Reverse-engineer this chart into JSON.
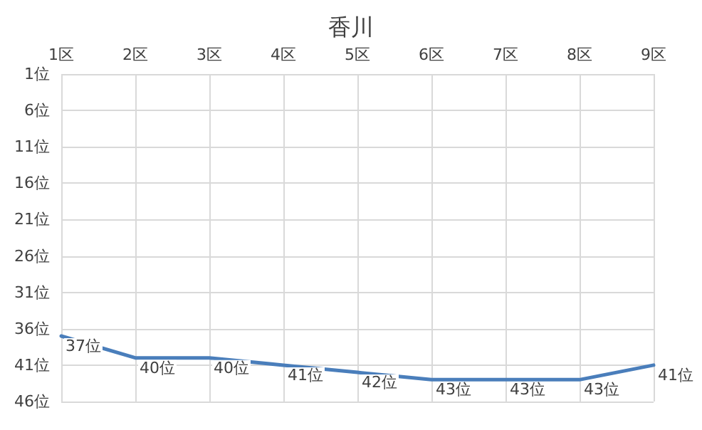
{
  "chart_data": {
    "type": "line",
    "title": "香川",
    "categories": [
      "1区",
      "2区",
      "3区",
      "4区",
      "5区",
      "6区",
      "7区",
      "8区",
      "9区"
    ],
    "series": [
      {
        "color": "#4a7ebb",
        "values": [
          37,
          40,
          40,
          41,
          42,
          43,
          43,
          43,
          41
        ],
        "value_labels": [
          "37位",
          "40位",
          "40位",
          "41位",
          "42位",
          "43位",
          "43位",
          "43位",
          "41位"
        ]
      }
    ],
    "ylim": [
      46,
      1
    ],
    "yticks": [
      {
        "value": 1,
        "label": "1位"
      },
      {
        "value": 6,
        "label": "6位"
      },
      {
        "value": 11,
        "label": "11位"
      },
      {
        "value": 16,
        "label": "16位"
      },
      {
        "value": 21,
        "label": "21位"
      },
      {
        "value": 26,
        "label": "26位"
      },
      {
        "value": 31,
        "label": "31位"
      },
      {
        "value": 36,
        "label": "36位"
      },
      {
        "value": 41,
        "label": "41位"
      },
      {
        "value": 46,
        "label": "46位"
      }
    ],
    "grid": true,
    "marker": "none",
    "line_style": "solid"
  }
}
